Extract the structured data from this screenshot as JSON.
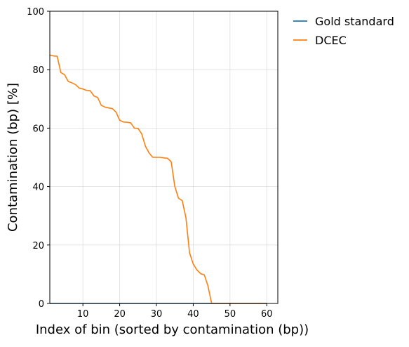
{
  "chart_data": {
    "type": "line",
    "xlabel": "Index of bin (sorted by contamination (bp))",
    "ylabel": "Contamination (bp) [%]",
    "xlim": [
      1,
      63
    ],
    "ylim": [
      0,
      100
    ],
    "xticks": [
      10,
      20,
      30,
      40,
      50,
      60
    ],
    "yticks": [
      0,
      20,
      40,
      60,
      80,
      100
    ],
    "grid": true,
    "legend_position": "outside-top-right",
    "series": [
      {
        "name": "Gold standard",
        "color": "#1f77b4",
        "x": [
          1,
          60
        ],
        "y": [
          0,
          0
        ]
      },
      {
        "name": "DCEC",
        "color": "#ff7f0e",
        "x": [
          1,
          2,
          3,
          4,
          5,
          6,
          7,
          8,
          9,
          10,
          11,
          12,
          13,
          14,
          15,
          16,
          17,
          18,
          19,
          20,
          21,
          22,
          23,
          24,
          25,
          26,
          27,
          28,
          29,
          30,
          31,
          32,
          33,
          34,
          35,
          36,
          37,
          38,
          39,
          40,
          41,
          42,
          43,
          44,
          45,
          46,
          47,
          48,
          49,
          50,
          51,
          52,
          53,
          54,
          55,
          56,
          57,
          58,
          59,
          60
        ],
        "y": [
          85,
          84.7,
          84.6,
          79,
          78.3,
          76,
          75.5,
          74.9,
          73.7,
          73.4,
          72.9,
          72.8,
          71,
          70.5,
          67.8,
          67.2,
          66.9,
          66.7,
          65.5,
          62.7,
          62.1,
          62,
          61.8,
          60,
          59.9,
          58,
          53.8,
          51.5,
          50,
          50,
          50,
          49.8,
          49.7,
          48.5,
          40,
          36,
          35.2,
          29.5,
          17.3,
          13.5,
          11.5,
          10.2,
          9.8,
          6,
          0,
          0,
          0,
          0,
          0,
          0,
          0,
          0,
          0,
          0,
          0,
          0,
          0,
          0,
          0,
          0
        ]
      }
    ]
  }
}
